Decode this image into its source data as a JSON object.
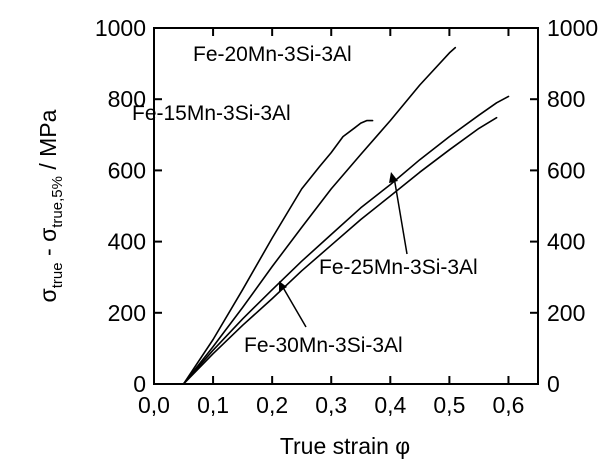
{
  "chart_data": {
    "type": "line",
    "title": "",
    "xlabel": "True strain φ",
    "ylabel_parts": {
      "sigma": "σ",
      "sub1": "true",
      "minus": " - σ",
      "sub2": "true,5%",
      "unit": " / MPa"
    },
    "xlim": [
      0.0,
      0.65
    ],
    "ylim": [
      0,
      1000
    ],
    "xticks": [
      0.0,
      0.1,
      0.2,
      0.3,
      0.4,
      0.5,
      0.6
    ],
    "xtick_labels": [
      "0,0",
      "0,1",
      "0,2",
      "0,3",
      "0,4",
      "0,5",
      "0,6"
    ],
    "yticks": [
      0,
      200,
      400,
      600,
      800,
      1000
    ],
    "ytick_labels": [
      "0",
      "200",
      "400",
      "600",
      "800",
      "1000"
    ],
    "right_axis_mirrored": true,
    "grid": false,
    "series": [
      {
        "name": "Fe-15Mn-3Si-3Al",
        "x": [
          0.05,
          0.1,
          0.15,
          0.2,
          0.25,
          0.28,
          0.3,
          0.32,
          0.34,
          0.35,
          0.36,
          0.37
        ],
        "y": [
          0,
          125,
          265,
          410,
          548,
          610,
          650,
          695,
          720,
          733,
          740,
          740
        ]
      },
      {
        "name": "Fe-20Mn-3Si-3Al",
        "x": [
          0.05,
          0.1,
          0.15,
          0.2,
          0.25,
          0.3,
          0.35,
          0.4,
          0.45,
          0.5,
          0.51
        ],
        "y": [
          0,
          105,
          215,
          330,
          440,
          548,
          645,
          740,
          840,
          930,
          945
        ]
      },
      {
        "name": "Fe-25Mn-3Si-3Al",
        "x": [
          0.05,
          0.1,
          0.15,
          0.2,
          0.25,
          0.3,
          0.35,
          0.4,
          0.45,
          0.5,
          0.55,
          0.58,
          0.6
        ],
        "y": [
          0,
          95,
          183,
          265,
          345,
          420,
          495,
          560,
          630,
          695,
          755,
          790,
          808
        ]
      },
      {
        "name": "Fe-30Mn-3Si-3Al",
        "x": [
          0.05,
          0.1,
          0.15,
          0.2,
          0.25,
          0.3,
          0.35,
          0.4,
          0.45,
          0.5,
          0.55,
          0.58
        ],
        "y": [
          0,
          85,
          165,
          240,
          318,
          390,
          462,
          528,
          595,
          658,
          718,
          748
        ]
      }
    ],
    "annotations": [
      {
        "text": "Fe-20Mn-3Si-3Al",
        "series": 1
      },
      {
        "text": "Fe-15Mn-3Si-3Al",
        "series": 0
      },
      {
        "text": "Fe-25Mn-3Si-3Al",
        "series": 2
      },
      {
        "text": "Fe-30Mn-3Si-3Al",
        "series": 3
      }
    ]
  }
}
